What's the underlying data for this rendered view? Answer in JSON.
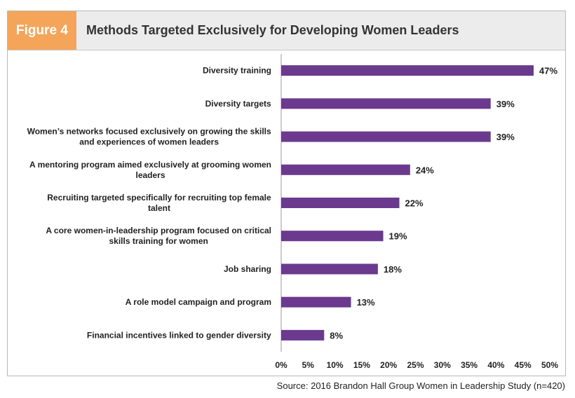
{
  "figure_label": "Figure 4",
  "title": "Methods Targeted Exclusively for Developing Women Leaders",
  "source": "Source: 2016 Brandon Hall Group Women in Leadership Study (n=420)",
  "colors": {
    "bar": "#6b3a8e",
    "label_box": "#f4a55a",
    "header_bg": "#ececec"
  },
  "chart_data": {
    "type": "bar",
    "orientation": "horizontal",
    "title": "Methods Targeted Exclusively for Developing Women Leaders",
    "categories": [
      [
        "Diversity training"
      ],
      [
        "Diversity targets"
      ],
      [
        "Women’s networks focused exclusively on growing the skills",
        "and experiences of women leaders"
      ],
      [
        "A mentoring program aimed exclusively at grooming women",
        "leaders"
      ],
      [
        "Recruiting targeted specifically for recruiting top female",
        "talent"
      ],
      [
        "A core women-in-leadership program focused on critical",
        "skills training for women"
      ],
      [
        "Job sharing"
      ],
      [
        "A role model campaign and program"
      ],
      [
        "Financial  incentives linked to gender diversity"
      ]
    ],
    "values": [
      47,
      39,
      39,
      24,
      22,
      19,
      18,
      13,
      8
    ],
    "value_labels": [
      "47%",
      "39%",
      "39%",
      "24%",
      "22%",
      "19%",
      "18%",
      "13%",
      "8%"
    ],
    "xlim": [
      0,
      50
    ],
    "x_ticks": [
      "0%",
      "5%",
      "10%",
      "15%",
      "20%",
      "25%",
      "30%",
      "35%",
      "40%",
      "45%",
      "50%"
    ],
    "grid": false,
    "legend": "none"
  }
}
